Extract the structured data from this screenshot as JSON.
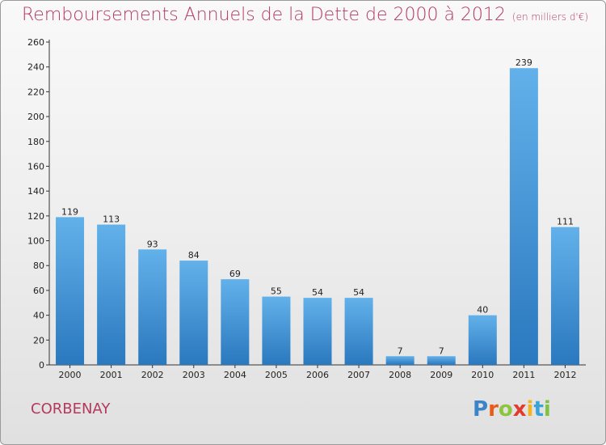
{
  "title": "Remboursements Annuels de la Dette de 2000 à 2012",
  "unit": "(en milliers d'€)",
  "city": "CORBENAY",
  "logo": {
    "letters": [
      "P",
      "r",
      "o",
      "x",
      "i",
      "t",
      "i"
    ],
    "colors": [
      "#3a84c8",
      "#e85b1a",
      "#8fc43f",
      "#e23a2e",
      "#f2b51f",
      "#3aa3d8",
      "#7fc241"
    ]
  },
  "colors": {
    "bar_light": "#63b1ea",
    "bar_dark": "#2a78be",
    "title": "#b5385f"
  },
  "chart_data": {
    "type": "bar",
    "categories": [
      "2000",
      "2001",
      "2002",
      "2003",
      "2004",
      "2005",
      "2006",
      "2007",
      "2008",
      "2009",
      "2010",
      "2011",
      "2012"
    ],
    "values": [
      119,
      113,
      93,
      84,
      69,
      55,
      54,
      54,
      7,
      7,
      40,
      239,
      111
    ],
    "ylim": [
      0,
      260
    ],
    "yticks": [
      0,
      20,
      40,
      60,
      80,
      100,
      120,
      140,
      160,
      180,
      200,
      220,
      240,
      260
    ],
    "grid": false,
    "xlabel": "",
    "ylabel": ""
  }
}
